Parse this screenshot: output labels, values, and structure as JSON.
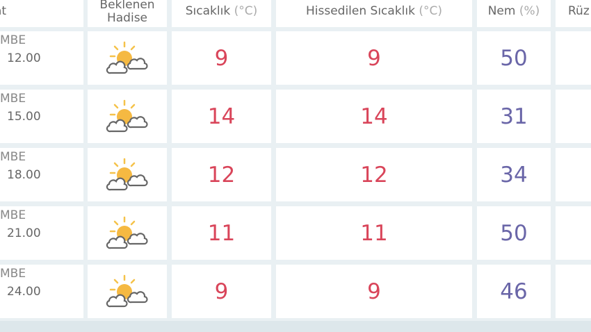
{
  "header": {
    "col_time": "at",
    "col_event": "Beklenen Hadise",
    "col_temp": "Sıcaklık",
    "col_temp_unit": "(°C)",
    "col_feels": "Hissedilen Sıcaklık",
    "col_feels_unit": "(°C)",
    "col_humidity": "Nem",
    "col_humidity_unit": "(%)",
    "col_wind": "Rüz"
  },
  "rows": [
    {
      "day": "MBE",
      "time": "12.00",
      "icon": "partly-cloudy-icon",
      "temp": "9",
      "feels": "9",
      "humidity": "50"
    },
    {
      "day": "MBE",
      "time": "15.00",
      "icon": "partly-cloudy-icon",
      "temp": "14",
      "feels": "14",
      "humidity": "31"
    },
    {
      "day": "MBE",
      "time": "18.00",
      "icon": "partly-cloudy-icon",
      "temp": "12",
      "feels": "12",
      "humidity": "34"
    },
    {
      "day": "MBE",
      "time": "21.00",
      "icon": "partly-cloudy-icon",
      "temp": "11",
      "feels": "11",
      "humidity": "50"
    },
    {
      "day": "MBE",
      "time": "24.00",
      "icon": "partly-cloudy-icon",
      "temp": "9",
      "feels": "9",
      "humidity": "46"
    }
  ],
  "colors": {
    "temp": "#d9455a",
    "humidity": "#6a66a8",
    "sun": "#f5b942",
    "background": "#e9f0f3"
  }
}
